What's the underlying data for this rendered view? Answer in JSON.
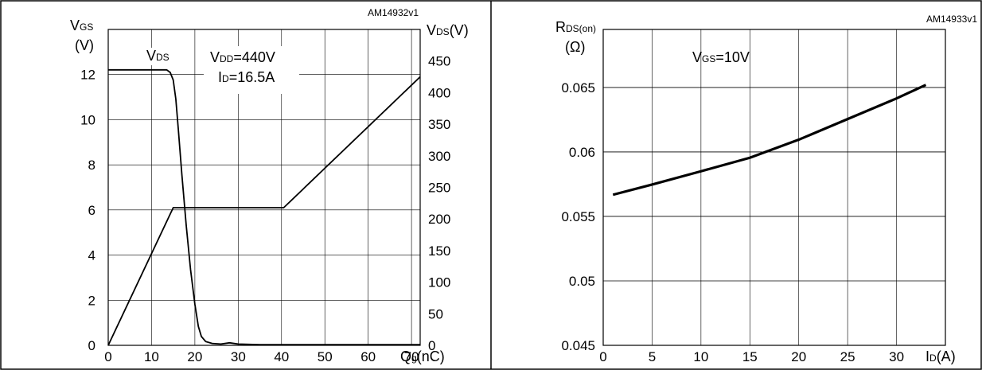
{
  "chart_data": [
    {
      "type": "line",
      "code": "AM14932v1",
      "left_axis": {
        "label_main": "V",
        "label_sub": "GS",
        "unit": "(V)",
        "ticks": [
          "0",
          "2",
          "4",
          "6",
          "8",
          "10",
          "12"
        ]
      },
      "right_axis": {
        "label_main": "V",
        "label_sub": "DS",
        "unit": "(V)",
        "ticks": [
          "0",
          "50",
          "100",
          "150",
          "200",
          "250",
          "300",
          "350",
          "400",
          "450"
        ]
      },
      "x_axis": {
        "label_main": "Q",
        "label_sub": "g",
        "unit": "(nC)",
        "ticks": [
          "0",
          "10",
          "20",
          "30",
          "40",
          "50",
          "60",
          "70"
        ]
      },
      "xlim": [
        0,
        72
      ],
      "ylim_left": [
        0,
        14
      ],
      "ylim_right": [
        0,
        500
      ],
      "annotations": {
        "vds": {
          "main": "V",
          "sub": "DS"
        },
        "vdd": {
          "main": "V",
          "sub": "DD",
          "rest": "=440V"
        },
        "id": {
          "main": "I",
          "sub": "D",
          "rest": "=16.5A"
        }
      },
      "series": [
        {
          "axis": "left",
          "x": [
            0,
            15,
            40.5,
            72
          ],
          "y": [
            0,
            6.1,
            6.1,
            11.9
          ]
        },
        {
          "axis": "right",
          "x": [
            0,
            12,
            13.5,
            14.3,
            15,
            15.6,
            16.2,
            17,
            18,
            19,
            20,
            20.8,
            21.5,
            22.5,
            24,
            26,
            28,
            30,
            35,
            45,
            60,
            72
          ],
          "y": [
            436,
            436,
            436,
            432,
            420,
            390,
            340,
            270,
            190,
            120,
            65,
            30,
            14,
            6,
            3,
            2,
            4,
            2,
            1,
            1,
            1,
            1
          ]
        }
      ]
    },
    {
      "type": "line",
      "code": "AM14933v1",
      "y_axis": {
        "label_main": "R",
        "label_sub": "DS(on)",
        "unit": "(Ω)",
        "ticks": [
          "0.045",
          "0.05",
          "0.055",
          "0.06",
          "0.065"
        ]
      },
      "x_axis": {
        "label_main": "I",
        "label_sub": "D",
        "unit": "(A)",
        "ticks": [
          "0",
          "5",
          "10",
          "15",
          "20",
          "25",
          "30"
        ]
      },
      "xlim": [
        0,
        35
      ],
      "ylim": [
        0.045,
        0.0695
      ],
      "annotation": {
        "main": "V",
        "sub": "GS",
        "rest": "=10V"
      },
      "series": [
        {
          "x": [
            1,
            5,
            10,
            15,
            20,
            25,
            30,
            33
          ],
          "y": [
            0.05668,
            0.05747,
            0.0585,
            0.05955,
            0.06095,
            0.06255,
            0.06415,
            0.0652
          ]
        }
      ]
    }
  ]
}
